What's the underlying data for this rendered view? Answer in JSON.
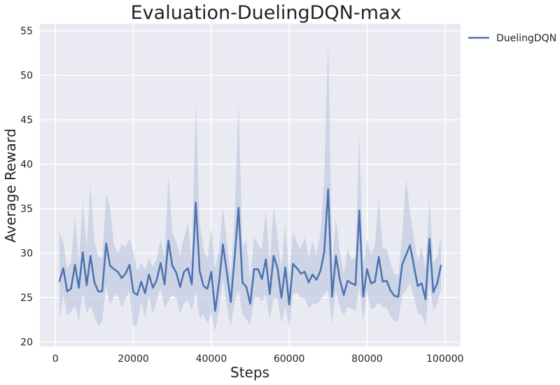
{
  "chart_data": {
    "type": "line",
    "title": "Evaluation-DuelingDQN-max",
    "xlabel": "Steps",
    "ylabel": "Average Reward",
    "xlim": [
      -4000,
      104000
    ],
    "ylim": [
      19.5,
      55.8
    ],
    "xticks": [
      0,
      20000,
      40000,
      60000,
      80000,
      100000
    ],
    "xtick_labels": [
      "0",
      "20000",
      "40000",
      "60000",
      "80000",
      "100000"
    ],
    "yticks": [
      20,
      25,
      30,
      35,
      40,
      45,
      50,
      55
    ],
    "ytick_labels": [
      "20",
      "25",
      "30",
      "35",
      "40",
      "45",
      "50",
      "55"
    ],
    "grid": true,
    "legend_position": "outside-top-right",
    "colors": {
      "line": "#4c72b0",
      "band": "#b8c4dc",
      "plot_bg": "#eaeaf2",
      "grid": "#ffffff"
    },
    "series": [
      {
        "name": "DuelingDQN",
        "x": [
          1000,
          2000,
          3000,
          4000,
          5000,
          6000,
          7000,
          8000,
          9000,
          10000,
          11000,
          12000,
          13000,
          14000,
          15000,
          16000,
          17000,
          18000,
          19000,
          20000,
          21000,
          22000,
          23000,
          24000,
          25000,
          26000,
          27000,
          28000,
          29000,
          30000,
          31000,
          32000,
          33000,
          34000,
          35000,
          36000,
          37000,
          38000,
          39000,
          40000,
          41000,
          42000,
          43000,
          44000,
          45000,
          46000,
          47000,
          48000,
          49000,
          50000,
          51000,
          52000,
          53000,
          54000,
          55000,
          56000,
          57000,
          58000,
          59000,
          60000,
          61000,
          62000,
          63000,
          64000,
          65000,
          66000,
          67000,
          68000,
          69000,
          70000,
          71000,
          72000,
          73000,
          74000,
          75000,
          76000,
          77000,
          78000,
          79000,
          80000,
          81000,
          82000,
          83000,
          84000,
          85000,
          86000,
          87000,
          88000,
          89000,
          90000,
          91000,
          92000,
          93000,
          94000,
          95000,
          96000,
          97000,
          98000,
          99000
        ],
        "y": [
          26.8,
          28.3,
          25.7,
          26.0,
          28.7,
          26.1,
          30.1,
          26.4,
          29.7,
          26.7,
          25.7,
          25.7,
          31.1,
          28.6,
          28.2,
          27.9,
          27.2,
          27.7,
          28.7,
          25.6,
          25.3,
          26.8,
          25.5,
          27.6,
          26.1,
          27.0,
          28.9,
          26.5,
          31.4,
          28.6,
          27.8,
          26.2,
          27.9,
          28.3,
          26.5,
          35.7,
          28.0,
          26.3,
          26.0,
          27.9,
          23.5,
          26.8,
          31.0,
          27.8,
          24.5,
          29.5,
          35.1,
          26.7,
          26.2,
          24.3,
          28.2,
          28.2,
          27.1,
          29.3,
          25.4,
          29.7,
          28.3,
          25.0,
          28.4,
          24.2,
          28.8,
          28.3,
          27.7,
          27.9,
          26.7,
          27.6,
          27.0,
          28.0,
          30.1,
          37.2,
          25.1,
          29.7,
          27.0,
          25.3,
          26.9,
          26.6,
          26.4,
          34.8,
          25.1,
          28.2,
          26.6,
          26.8,
          29.6,
          26.8,
          26.9,
          25.8,
          25.2,
          25.1,
          28.7,
          29.8,
          30.9,
          28.6,
          26.3,
          26.6,
          24.8,
          31.6,
          25.6,
          26.6,
          28.7
        ],
        "upper": [
          32.4,
          31.2,
          28.2,
          29.1,
          34.2,
          29.1,
          35.8,
          30.5,
          37.7,
          31.3,
          29.6,
          29.5,
          36.6,
          35.2,
          31.0,
          30.0,
          31.0,
          30.7,
          31.6,
          30.2,
          28.0,
          28.9,
          28.1,
          29.5,
          28.4,
          29.4,
          31.5,
          29.4,
          38.7,
          32.4,
          31.2,
          29.8,
          31.8,
          33.4,
          29.0,
          47.0,
          33.5,
          30.5,
          29.3,
          32.8,
          28.2,
          30.5,
          35.1,
          31.3,
          27.5,
          34.0,
          46.8,
          30.6,
          31.5,
          27.0,
          31.8,
          31.0,
          30.3,
          35.0,
          28.6,
          35.3,
          31.8,
          28.2,
          33.5,
          27.4,
          32.4,
          31.1,
          30.4,
          31.8,
          29.5,
          31.3,
          29.8,
          32.2,
          38.2,
          54.0,
          28.5,
          33.9,
          30.2,
          27.6,
          30.5,
          29.2,
          29.6,
          43.3,
          28.5,
          31.5,
          29.8,
          31.0,
          36.1,
          30.5,
          30.5,
          28.9,
          27.6,
          27.6,
          31.8,
          38.4,
          34.6,
          31.7,
          29.1,
          30.7,
          28.2,
          36.0,
          28.9,
          29.6,
          31.9
        ],
        "lower": [
          22.6,
          25.2,
          23.0,
          23.4,
          24.1,
          22.3,
          25.6,
          23.3,
          24.0,
          22.9,
          21.8,
          22.3,
          26.3,
          24.2,
          25.1,
          25.4,
          23.8,
          24.9,
          25.7,
          21.6,
          22.1,
          24.5,
          22.8,
          25.2,
          23.2,
          24.6,
          26.1,
          23.8,
          24.6,
          25.3,
          24.9,
          23.2,
          24.4,
          24.7,
          23.5,
          25.7,
          22.7,
          23.1,
          22.1,
          23.3,
          21.2,
          23.6,
          27.1,
          24.0,
          21.8,
          24.6,
          25.8,
          23.1,
          22.6,
          21.9,
          24.9,
          25.1,
          24.6,
          25.2,
          22.5,
          25.0,
          24.8,
          22.1,
          24.1,
          21.6,
          25.4,
          25.6,
          24.9,
          25.0,
          23.8,
          24.3,
          24.3,
          24.7,
          25.4,
          25.8,
          22.0,
          25.8,
          23.9,
          23.0,
          24.0,
          23.8,
          23.5,
          26.2,
          22.4,
          25.7,
          23.7,
          23.9,
          24.5,
          23.9,
          23.9,
          22.9,
          22.3,
          22.4,
          25.3,
          25.9,
          26.7,
          25.1,
          23.3,
          23.0,
          21.8,
          26.9,
          23.5,
          24.3,
          26.0
        ]
      }
    ]
  }
}
